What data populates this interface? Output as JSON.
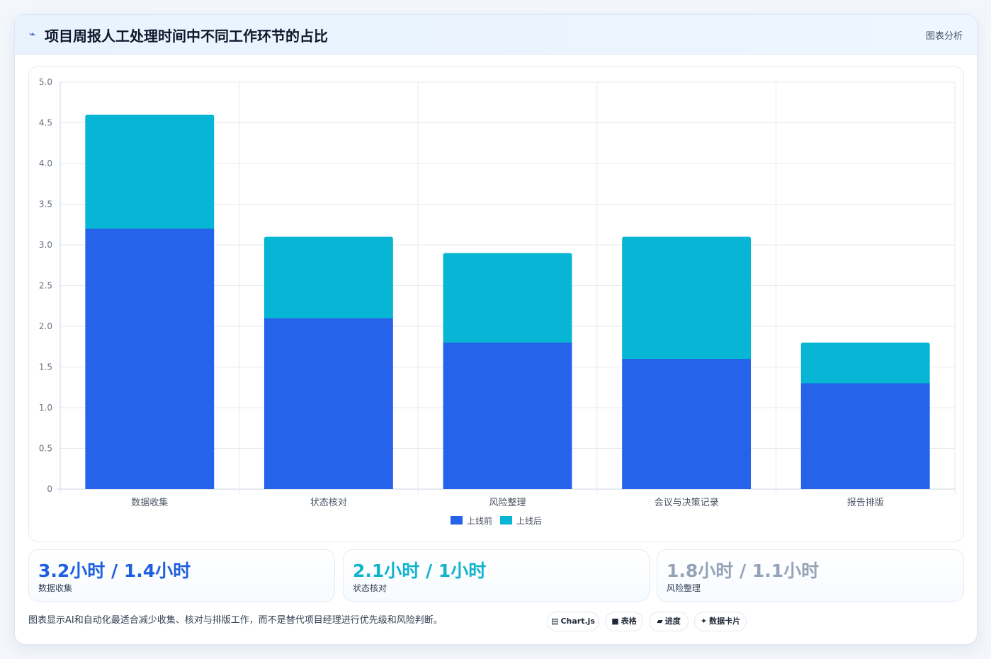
{
  "header": {
    "icon": "sparkline-icon",
    "title": "项目周报人工处理时间中不同工作环节的占比",
    "right_label": "图表分析"
  },
  "chart_data": {
    "type": "bar",
    "stacked": true,
    "categories": [
      "数据收集",
      "状态核对",
      "风险整理",
      "会议与决策记录",
      "报告排版"
    ],
    "series": [
      {
        "name": "上线前",
        "color": "#2563eb",
        "values": [
          3.2,
          2.1,
          1.8,
          1.6,
          1.3
        ]
      },
      {
        "name": "上线后",
        "color": "#06b6d4",
        "values": [
          1.4,
          1.0,
          1.1,
          1.5,
          0.5
        ]
      }
    ],
    "ylim": [
      0,
      5.0
    ],
    "yticks": [
      "0",
      "0.5",
      "1.0",
      "1.5",
      "2.0",
      "2.5",
      "3.0",
      "3.5",
      "4.0",
      "4.5",
      "5.0"
    ],
    "grid": true,
    "legend": "bottom-center"
  },
  "stats": [
    {
      "value": "3.2小时 / 1.4小时",
      "label": "数据收集",
      "color": "#1d5fe0"
    },
    {
      "value": "2.1小时 / 1小时",
      "label": "状态核对",
      "color": "#10b3cc"
    },
    {
      "value": "1.8小时 / 1.1小时",
      "label": "风险整理",
      "color": "#94a3b8"
    }
  ],
  "footer": {
    "note": "图表显示AI和自动化最适合减少收集、核对与排版工作，而不是替代项目经理进行优先级和风险判断。",
    "pills": [
      {
        "icon": "chart-icon",
        "glyph": "▤",
        "label": "Chart.js"
      },
      {
        "icon": "table-icon",
        "glyph": "■",
        "label": "表格"
      },
      {
        "icon": "progress-icon",
        "glyph": "▰",
        "label": "进度"
      },
      {
        "icon": "sparkle-icon",
        "glyph": "✦",
        "label": "数据卡片"
      }
    ]
  }
}
